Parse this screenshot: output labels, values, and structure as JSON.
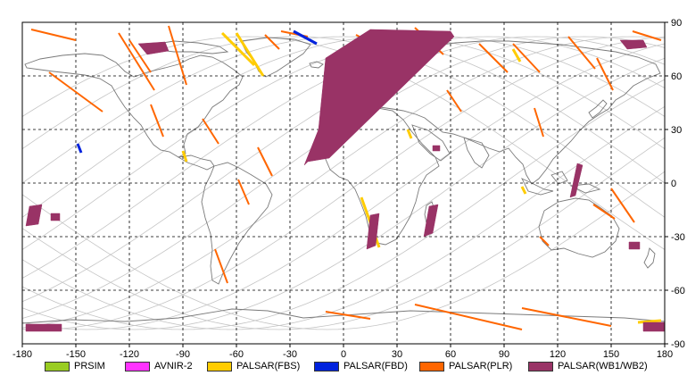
{
  "map": {
    "x_ticks": [
      "-180",
      "-150",
      "-120",
      "-90",
      "-60",
      "-30",
      "0",
      "30",
      "60",
      "90",
      "120",
      "150",
      "180"
    ],
    "y_ticks": [
      "90",
      "60",
      "30",
      "0",
      "-30",
      "-60",
      "-90"
    ],
    "x_range": [
      -180,
      180
    ],
    "y_range": [
      -90,
      90
    ],
    "grid": "dashed",
    "colors": {
      "land_outline": "#7a7a7a",
      "orbit_tracks": "#c4c4c4",
      "grid": "#000000",
      "background": "#ffffff"
    }
  },
  "legend": {
    "items": [
      {
        "label": "PRSIM",
        "color": "#99cc22"
      },
      {
        "label": "AVNIR-2",
        "color": "#ff33ff"
      },
      {
        "label": "PALSAR(FBS)",
        "color": "#ffcc00"
      },
      {
        "label": "PALSAR(FBD)",
        "color": "#0022dd"
      },
      {
        "label": "PALSAR(PLR)",
        "color": "#ff6600"
      },
      {
        "label": "PALSAR(WB1/WB2)",
        "color": "#993366"
      }
    ]
  },
  "coverage": {
    "wb_swaths": [
      {
        "lon": [
          -115,
          -100,
          -98,
          -110
        ],
        "lat": [
          78,
          79,
          74,
          72
        ]
      },
      {
        "lon": [
          -20,
          -8,
          62,
          60,
          15,
          -10,
          -14,
          -22
        ],
        "lat": [
          12,
          14,
          82,
          85,
          86,
          70,
          30,
          10
        ]
      },
      {
        "lon": [
          13,
          18,
          20,
          15
        ],
        "lat": [
          -37,
          -35,
          -17,
          -18
        ]
      },
      {
        "lon": [
          45,
          50,
          53,
          48
        ],
        "lat": [
          -30,
          -28,
          -12,
          -13
        ]
      },
      {
        "lon": [
          127,
          130,
          134,
          131
        ],
        "lat": [
          -8,
          -7,
          10,
          11
        ]
      },
      {
        "lon": [
          -178,
          -171,
          -169,
          -176
        ],
        "lat": [
          -24,
          -23,
          -12,
          -13
        ]
      },
      {
        "lon": [
          -164,
          -159,
          -159,
          -164
        ],
        "lat": [
          -21,
          -21,
          -17,
          -17
        ]
      },
      {
        "lon": [
          50,
          54,
          54,
          50
        ],
        "lat": [
          18,
          18,
          21,
          21
        ]
      },
      {
        "lon": [
          155,
          168,
          170,
          159
        ],
        "lat": [
          80,
          80,
          76,
          75
        ]
      },
      {
        "lon": [
          160,
          166,
          166,
          160
        ],
        "lat": [
          -37,
          -37,
          -33,
          -33
        ]
      },
      {
        "lon": [
          -178,
          -158,
          -158,
          -178
        ],
        "lat": [
          -83,
          -83,
          -79,
          -79
        ]
      },
      {
        "lon": [
          168,
          180,
          180,
          168
        ],
        "lat": [
          -83,
          -83,
          -78,
          -78
        ]
      }
    ],
    "fbs_lines": [
      {
        "lon": [
          -68,
          -50
        ],
        "lat": [
          84,
          66
        ]
      },
      {
        "lon": [
          -60,
          -45
        ],
        "lat": [
          84,
          60
        ]
      },
      {
        "lon": [
          95,
          99
        ],
        "lat": [
          75,
          68
        ]
      },
      {
        "lon": [
          10,
          20
        ],
        "lat": [
          -8,
          -36
        ]
      },
      {
        "lon": [
          36,
          38
        ],
        "lat": [
          30,
          25
        ]
      },
      {
        "lon": [
          -90,
          -88
        ],
        "lat": [
          18,
          12
        ]
      },
      {
        "lon": [
          165,
          178
        ],
        "lat": [
          -78,
          -77
        ]
      },
      {
        "lon": [
          100,
          102
        ],
        "lat": [
          -2,
          -6
        ]
      }
    ],
    "fbd_lines": [
      {
        "lon": [
          -28,
          -15
        ],
        "lat": [
          85,
          78
        ]
      },
      {
        "lon": [
          -149,
          -147
        ],
        "lat": [
          22,
          17
        ]
      }
    ],
    "plr_lines": [
      {
        "lon": [
          -175,
          -150
        ],
        "lat": [
          86,
          80
        ]
      },
      {
        "lon": [
          -165,
          -135
        ],
        "lat": [
          62,
          40
        ]
      },
      {
        "lon": [
          -126,
          -106
        ],
        "lat": [
          84,
          52
        ]
      },
      {
        "lon": [
          -98,
          -88
        ],
        "lat": [
          88,
          55
        ]
      },
      {
        "lon": [
          -79,
          -70
        ],
        "lat": [
          36,
          22
        ]
      },
      {
        "lon": [
          -59,
          -53
        ],
        "lat": [
          2,
          -12
        ]
      },
      {
        "lon": [
          -72,
          -65
        ],
        "lat": [
          -37,
          -56
        ]
      },
      {
        "lon": [
          -120,
          -108
        ],
        "lat": [
          80,
          62
        ]
      },
      {
        "lon": [
          -108,
          -101
        ],
        "lat": [
          44,
          26
        ]
      },
      {
        "lon": [
          -44,
          -36
        ],
        "lat": [
          83,
          75
        ]
      },
      {
        "lon": [
          -35,
          -20
        ],
        "lat": [
          85,
          82
        ]
      },
      {
        "lon": [
          7,
          28
        ],
        "lat": [
          83,
          72
        ]
      },
      {
        "lon": [
          40,
          56
        ],
        "lat": [
          87,
          72
        ]
      },
      {
        "lon": [
          58,
          66
        ],
        "lat": [
          52,
          40
        ]
      },
      {
        "lon": [
          76,
          92
        ],
        "lat": [
          78,
          62
        ]
      },
      {
        "lon": [
          95,
          110
        ],
        "lat": [
          78,
          62
        ]
      },
      {
        "lon": [
          126,
          141
        ],
        "lat": [
          82,
          64
        ]
      },
      {
        "lon": [
          142,
          151
        ],
        "lat": [
          70,
          52
        ]
      },
      {
        "lon": [
          162,
          178
        ],
        "lat": [
          85,
          80
        ]
      },
      {
        "lon": [
          107,
          112
        ],
        "lat": [
          42,
          26
        ]
      },
      {
        "lon": [
          150,
          163
        ],
        "lat": [
          -3,
          -22
        ]
      },
      {
        "lon": [
          140,
          152
        ],
        "lat": [
          -12,
          -20
        ]
      },
      {
        "lon": [
          110,
          115
        ],
        "lat": [
          -30,
          -35
        ]
      },
      {
        "lon": [
          40,
          100
        ],
        "lat": [
          -68,
          -82
        ]
      },
      {
        "lon": [
          100,
          150
        ],
        "lat": [
          -70,
          -80
        ]
      },
      {
        "lon": [
          -10,
          15
        ],
        "lat": [
          -72,
          -76
        ]
      },
      {
        "lon": [
          -48,
          -40
        ],
        "lat": [
          20,
          4
        ]
      }
    ]
  }
}
